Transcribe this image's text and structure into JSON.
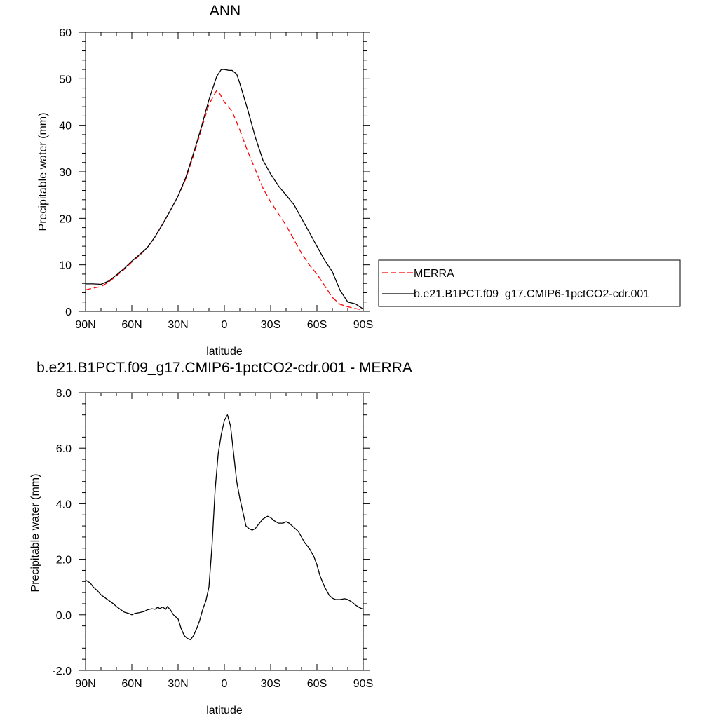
{
  "chart_data": [
    {
      "type": "line",
      "title": "ANN",
      "xlabel": "latitude",
      "ylabel": "Precipitable water (mm)",
      "xlim": [
        90,
        -90
      ],
      "ylim": [
        0,
        60
      ],
      "x_ticks": [
        {
          "v": 90,
          "label": "90N"
        },
        {
          "v": 60,
          "label": "60N"
        },
        {
          "v": 30,
          "label": "30N"
        },
        {
          "v": 0,
          "label": "0"
        },
        {
          "v": -30,
          "label": "30S"
        },
        {
          "v": -60,
          "label": "60S"
        },
        {
          "v": -90,
          "label": "90S"
        }
      ],
      "y_ticks": [
        {
          "v": 0,
          "label": "0"
        },
        {
          "v": 10,
          "label": "10"
        },
        {
          "v": 20,
          "label": "20"
        },
        {
          "v": 30,
          "label": "30"
        },
        {
          "v": 40,
          "label": "40"
        },
        {
          "v": 50,
          "label": "50"
        },
        {
          "v": 60,
          "label": "60"
        }
      ],
      "grid": false,
      "legend": {
        "position": "right"
      },
      "series": [
        {
          "name": "MERRA",
          "color": "#ff0000",
          "dash": "dashed",
          "x": [
            90,
            85,
            80,
            75,
            70,
            65,
            60,
            55,
            50,
            45,
            40,
            35,
            30,
            25,
            20,
            15,
            10,
            5,
            3,
            0,
            -5,
            -10,
            -15,
            -20,
            -25,
            -30,
            -35,
            -40,
            -45,
            -50,
            -55,
            -60,
            -65,
            -70,
            -75,
            -80,
            -85,
            -90
          ],
          "y": [
            4.6,
            5.0,
            5.3,
            6.3,
            7.6,
            9.0,
            10.6,
            12.0,
            13.7,
            16.0,
            18.7,
            21.7,
            24.8,
            28.5,
            33.5,
            39.0,
            44.5,
            47.5,
            46.8,
            45.0,
            43.0,
            39.0,
            34.5,
            30.5,
            26.5,
            23.5,
            21.0,
            18.5,
            15.5,
            12.5,
            10.0,
            8.0,
            5.5,
            3.0,
            1.5,
            1.0,
            0.6,
            0.3
          ]
        },
        {
          "name": "b.e21.B1PCT.f09_g17.CMIP6-1pctCO2-cdr.001",
          "color": "#000000",
          "dash": "solid",
          "x": [
            90,
            85,
            80,
            75,
            70,
            65,
            60,
            55,
            50,
            45,
            40,
            35,
            30,
            25,
            20,
            15,
            10,
            5,
            2,
            0,
            -3,
            -5,
            -8,
            -10,
            -15,
            -20,
            -25,
            -30,
            -35,
            -40,
            -45,
            -50,
            -55,
            -60,
            -65,
            -70,
            -75,
            -80,
            -85,
            -90
          ],
          "y": [
            5.9,
            5.9,
            5.8,
            6.5,
            7.8,
            9.2,
            10.8,
            12.2,
            13.7,
            16.0,
            18.8,
            21.7,
            24.8,
            28.8,
            34.0,
            39.5,
            45.5,
            50.5,
            52.0,
            52.0,
            51.8,
            51.8,
            51.0,
            49.0,
            43.5,
            37.5,
            32.5,
            29.5,
            27.0,
            25.0,
            23.0,
            20.0,
            17.0,
            14.0,
            11.0,
            8.5,
            4.5,
            2.0,
            1.6,
            0.5
          ]
        }
      ]
    },
    {
      "type": "line",
      "title": "b.e21.B1PCT.f09_g17.CMIP6-1pctCO2-cdr.001 - MERRA",
      "xlabel": "latitude",
      "ylabel": "Precipitable water (mm)",
      "xlim": [
        90,
        -90
      ],
      "ylim": [
        -2,
        8
      ],
      "x_ticks": [
        {
          "v": 90,
          "label": "90N"
        },
        {
          "v": 60,
          "label": "60N"
        },
        {
          "v": 30,
          "label": "30N"
        },
        {
          "v": 0,
          "label": "0"
        },
        {
          "v": -30,
          "label": "30S"
        },
        {
          "v": -60,
          "label": "60S"
        },
        {
          "v": -90,
          "label": "90S"
        }
      ],
      "y_ticks": [
        {
          "v": -2,
          "label": "-2.0"
        },
        {
          "v": 0,
          "label": "0.0"
        },
        {
          "v": 2,
          "label": "2.0"
        },
        {
          "v": 4,
          "label": "4.0"
        },
        {
          "v": 6,
          "label": "6.0"
        },
        {
          "v": 8,
          "label": "8.0"
        }
      ],
      "grid": false,
      "series": [
        {
          "color": "#000000",
          "dash": "solid",
          "x": [
            90,
            87,
            85,
            82,
            80,
            77,
            75,
            72,
            70,
            67,
            65,
            62,
            60,
            58,
            55,
            52,
            50,
            47,
            45,
            43,
            42,
            40,
            38,
            37,
            35,
            33,
            30,
            28,
            26,
            24,
            22,
            20,
            18,
            16,
            14,
            12,
            10,
            8,
            6,
            4,
            2,
            0,
            -2,
            -4,
            -6,
            -8,
            -10,
            -12,
            -14,
            -16,
            -18,
            -20,
            -22,
            -25,
            -28,
            -30,
            -32,
            -35,
            -38,
            -40,
            -42,
            -45,
            -48,
            -50,
            -52,
            -55,
            -58,
            -60,
            -62,
            -65,
            -68,
            -70,
            -72,
            -75,
            -78,
            -80,
            -83,
            -85,
            -88,
            -90
          ],
          "y": [
            1.25,
            1.15,
            1.0,
            0.85,
            0.72,
            0.6,
            0.52,
            0.4,
            0.3,
            0.18,
            0.1,
            0.05,
            0.0,
            0.05,
            0.08,
            0.12,
            0.18,
            0.22,
            0.2,
            0.28,
            0.22,
            0.28,
            0.2,
            0.3,
            0.18,
            0.0,
            -0.15,
            -0.5,
            -0.75,
            -0.85,
            -0.9,
            -0.75,
            -0.5,
            -0.2,
            0.2,
            0.5,
            1.0,
            2.5,
            4.5,
            5.8,
            6.5,
            7.0,
            7.2,
            6.8,
            5.8,
            4.8,
            4.2,
            3.7,
            3.2,
            3.1,
            3.05,
            3.1,
            3.25,
            3.45,
            3.55,
            3.5,
            3.4,
            3.3,
            3.3,
            3.35,
            3.3,
            3.15,
            3.0,
            2.8,
            2.6,
            2.4,
            2.1,
            1.8,
            1.4,
            1.0,
            0.7,
            0.6,
            0.55,
            0.55,
            0.58,
            0.55,
            0.45,
            0.35,
            0.25,
            0.2
          ]
        }
      ]
    }
  ]
}
